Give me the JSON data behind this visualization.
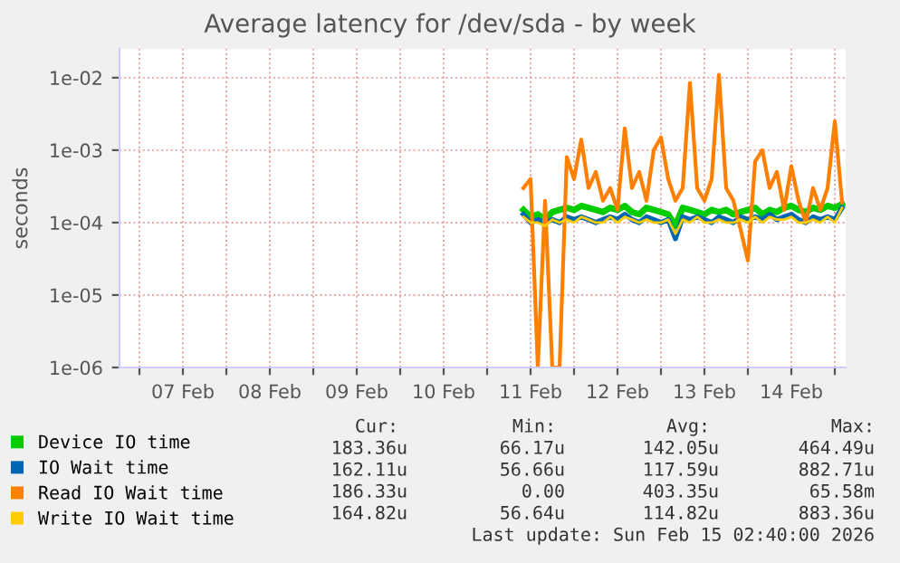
{
  "chart_data": {
    "type": "line",
    "title": "Average latency for /dev/sda - by week",
    "ylabel": "seconds",
    "log": "y",
    "grid": true,
    "legend": "bottom",
    "marker": "none",
    "line_style": "solid",
    "xlim": [
      "2026-02-06T18:30",
      "2026-02-15T03:00"
    ],
    "xticks": [
      {
        "value": "2026-02-07T00:00",
        "label": null
      },
      {
        "value": "2026-02-07T12:00",
        "label": "07 Feb"
      },
      {
        "value": "2026-02-08T00:00",
        "label": null
      },
      {
        "value": "2026-02-08T12:00",
        "label": "08 Feb"
      },
      {
        "value": "2026-02-09T00:00",
        "label": null
      },
      {
        "value": "2026-02-09T12:00",
        "label": "09 Feb"
      },
      {
        "value": "2026-02-10T00:00",
        "label": null
      },
      {
        "value": "2026-02-10T12:00",
        "label": "10 Feb"
      },
      {
        "value": "2026-02-11T00:00",
        "label": null
      },
      {
        "value": "2026-02-11T12:00",
        "label": "11 Feb"
      },
      {
        "value": "2026-02-12T00:00",
        "label": null
      },
      {
        "value": "2026-02-12T12:00",
        "label": "12 Feb"
      },
      {
        "value": "2026-02-13T00:00",
        "label": null
      },
      {
        "value": "2026-02-13T12:00",
        "label": "13 Feb"
      },
      {
        "value": "2026-02-14T00:00",
        "label": null
      },
      {
        "value": "2026-02-14T12:00",
        "label": "14 Feb"
      },
      {
        "value": "2026-02-15T00:00",
        "label": null
      }
    ],
    "ylim": [
      1e-06,
      0.025
    ],
    "yticks": [
      {
        "value": 1e-06,
        "label": "1e-06"
      },
      {
        "value": 1e-05,
        "label": "1e-05"
      },
      {
        "value": 0.0001,
        "label": "1e-04"
      },
      {
        "value": 0.001,
        "label": "1e-03"
      },
      {
        "value": 0.01,
        "label": "1e-02"
      }
    ],
    "x": [
      "2026-02-11T10:00",
      "2026-02-11T12:00",
      "2026-02-11T14:00",
      "2026-02-11T16:00",
      "2026-02-11T18:00",
      "2026-02-11T20:00",
      "2026-02-11T22:00",
      "2026-02-12T00:00",
      "2026-02-12T02:00",
      "2026-02-12T04:00",
      "2026-02-12T06:00",
      "2026-02-12T08:00",
      "2026-02-12T10:00",
      "2026-02-12T12:00",
      "2026-02-12T14:00",
      "2026-02-12T16:00",
      "2026-02-12T18:00",
      "2026-02-12T20:00",
      "2026-02-12T22:00",
      "2026-02-13T00:00",
      "2026-02-13T02:00",
      "2026-02-13T04:00",
      "2026-02-13T06:00",
      "2026-02-13T08:00",
      "2026-02-13T10:00",
      "2026-02-13T12:00",
      "2026-02-13T14:00",
      "2026-02-13T16:00",
      "2026-02-13T18:00",
      "2026-02-13T20:00",
      "2026-02-13T22:00",
      "2026-02-14T00:00",
      "2026-02-14T02:00",
      "2026-02-14T04:00",
      "2026-02-14T06:00",
      "2026-02-14T08:00",
      "2026-02-14T10:00",
      "2026-02-14T12:00",
      "2026-02-14T14:00",
      "2026-02-14T16:00",
      "2026-02-14T18:00",
      "2026-02-14T20:00",
      "2026-02-14T22:00",
      "2026-02-15T00:00",
      "2026-02-15T02:00"
    ],
    "series": [
      {
        "name": "Device IO time",
        "color": "#00cc00",
        "values": [
          0.00015,
          0.00012,
          0.00013,
          0.00011,
          0.00014,
          0.00015,
          0.00016,
          0.00015,
          0.00017,
          0.00016,
          0.00015,
          0.00014,
          0.00016,
          0.00015,
          0.00017,
          0.00014,
          0.00013,
          0.00016,
          0.00015,
          0.00014,
          0.00013,
          9e-05,
          0.00016,
          0.00015,
          0.00014,
          0.00013,
          0.00015,
          0.00014,
          0.00015,
          0.00013,
          0.00014,
          0.00015,
          0.00016,
          0.00013,
          0.00015,
          0.00014,
          0.00016,
          0.00017,
          0.00015,
          0.00014,
          0.00016,
          0.00015,
          0.00017,
          0.00016,
          0.00018
        ]
      },
      {
        "name": "IO Wait time",
        "color": "#0066b3",
        "values": [
          0.00013,
          0.0001,
          0.00011,
          0.0001,
          0.00011,
          0.0001,
          0.00012,
          0.00011,
          0.00012,
          0.00011,
          0.0001,
          0.00011,
          0.00012,
          0.00011,
          0.00013,
          0.00011,
          0.0001,
          0.00012,
          0.00011,
          0.0001,
          0.00011,
          6e-05,
          0.00012,
          0.00011,
          0.00012,
          0.00011,
          0.0001,
          0.00012,
          0.00011,
          0.0001,
          0.00012,
          0.00011,
          0.00012,
          0.00011,
          0.00013,
          0.00011,
          0.00012,
          0.00013,
          0.00011,
          0.0001,
          0.00012,
          0.00011,
          0.00012,
          0.00011,
          0.00016
        ]
      },
      {
        "name": "Read IO Wait time",
        "color": "#ff8000",
        "values": [
          0.0003,
          0.0004,
          1e-06,
          0.0002,
          1e-06,
          1e-06,
          0.0008,
          0.0004,
          0.0014,
          0.0003,
          0.0005,
          0.0002,
          0.0003,
          0.00015,
          0.002,
          0.0003,
          0.0005,
          0.0002,
          0.001,
          0.0015,
          0.0004,
          0.0002,
          0.0003,
          0.0085,
          0.0003,
          0.0002,
          0.0004,
          0.011,
          0.0003,
          0.0002,
          8e-05,
          3e-05,
          0.0007,
          0.001,
          0.0003,
          0.0005,
          0.00015,
          0.0006,
          0.0002,
          0.0001,
          0.0003,
          0.00015,
          0.0003,
          0.0025,
          0.00019
        ]
      },
      {
        "name": "Write IO Wait time",
        "color": "#ffcc00",
        "values": [
          0.00012,
          0.0001,
          0.0001,
          9e-05,
          0.00011,
          0.0001,
          0.00011,
          0.0001,
          0.00012,
          0.00011,
          0.0001,
          0.0001,
          0.00012,
          0.0001,
          0.00012,
          0.00011,
          0.0001,
          0.00011,
          0.0001,
          0.0001,
          0.00011,
          7e-05,
          0.00011,
          0.0001,
          0.00012,
          0.0001,
          0.0001,
          0.00011,
          0.0001,
          0.0001,
          0.00011,
          0.0001,
          0.00012,
          0.0001,
          0.00012,
          0.00011,
          0.00011,
          0.00012,
          0.0001,
          0.0001,
          0.00011,
          0.0001,
          0.00012,
          0.0001,
          0.00016
        ]
      }
    ],
    "annotations": [
      "Cur:",
      "Min:",
      "Avg:",
      "Max:",
      "183.36u",
      "66.17u",
      "142.05u",
      "464.49u",
      "162.11u",
      "56.66u",
      "117.59u",
      "882.71u",
      "186.33u",
      "0.00",
      "403.35u",
      "65.58m",
      "164.82u",
      "56.64u",
      "114.82u",
      "883.36u",
      "Last update: Sun Feb 15 02:40:00 2026"
    ]
  }
}
